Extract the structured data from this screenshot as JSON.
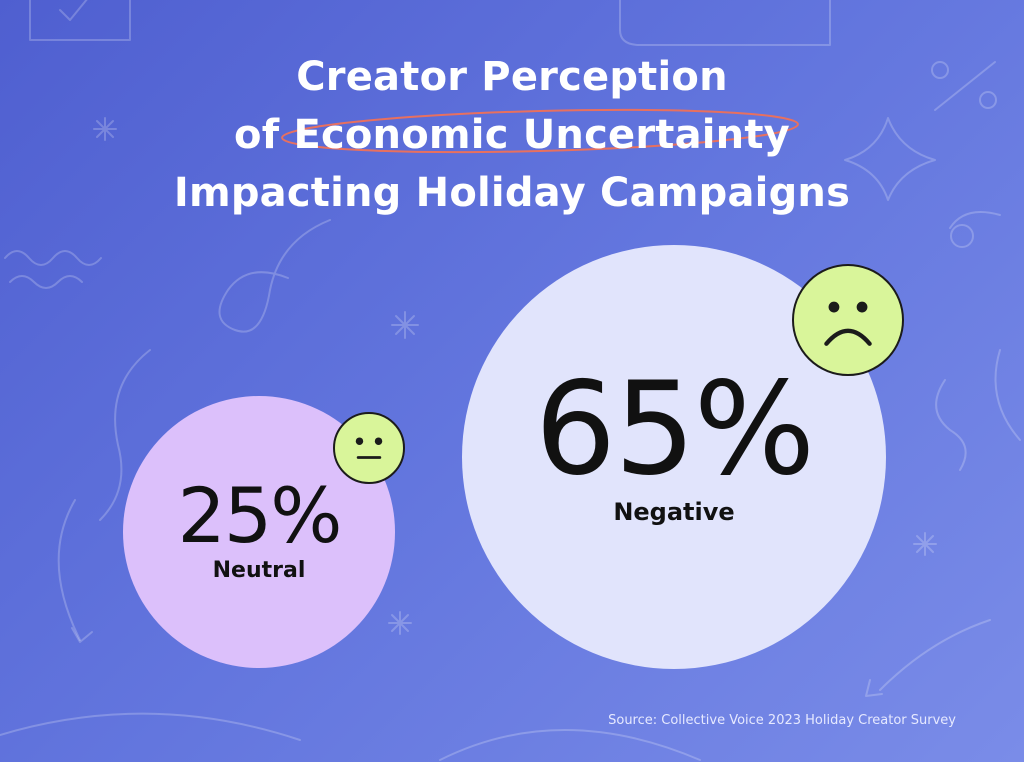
{
  "title_lines": [
    "Creator Perception",
    "of Economic Uncertainty",
    "Impacting Holiday Campaigns"
  ],
  "source": "Source: Collective Voice 2023 Holiday Creator Survey",
  "colors": {
    "background_start": "#4f5fd0",
    "background_end": "#7a8ce8",
    "neutral_bubble": "#dcc0fb",
    "negative_bubble": "#e1e4fc",
    "face": "#d9f59a",
    "highlight_ellipse": "#e8705f",
    "text_dark": "#111111"
  },
  "chart_data": {
    "type": "bubble",
    "title": "Creator Perception of Economic Uncertainty Impacting Holiday Campaigns",
    "unit": "%",
    "values": [
      {
        "label": "Neutral",
        "value": 25,
        "display": "25%",
        "icon": "neutral-face-icon"
      },
      {
        "label": "Negative",
        "value": 65,
        "display": "65%",
        "icon": "sad-face-icon"
      }
    ]
  }
}
